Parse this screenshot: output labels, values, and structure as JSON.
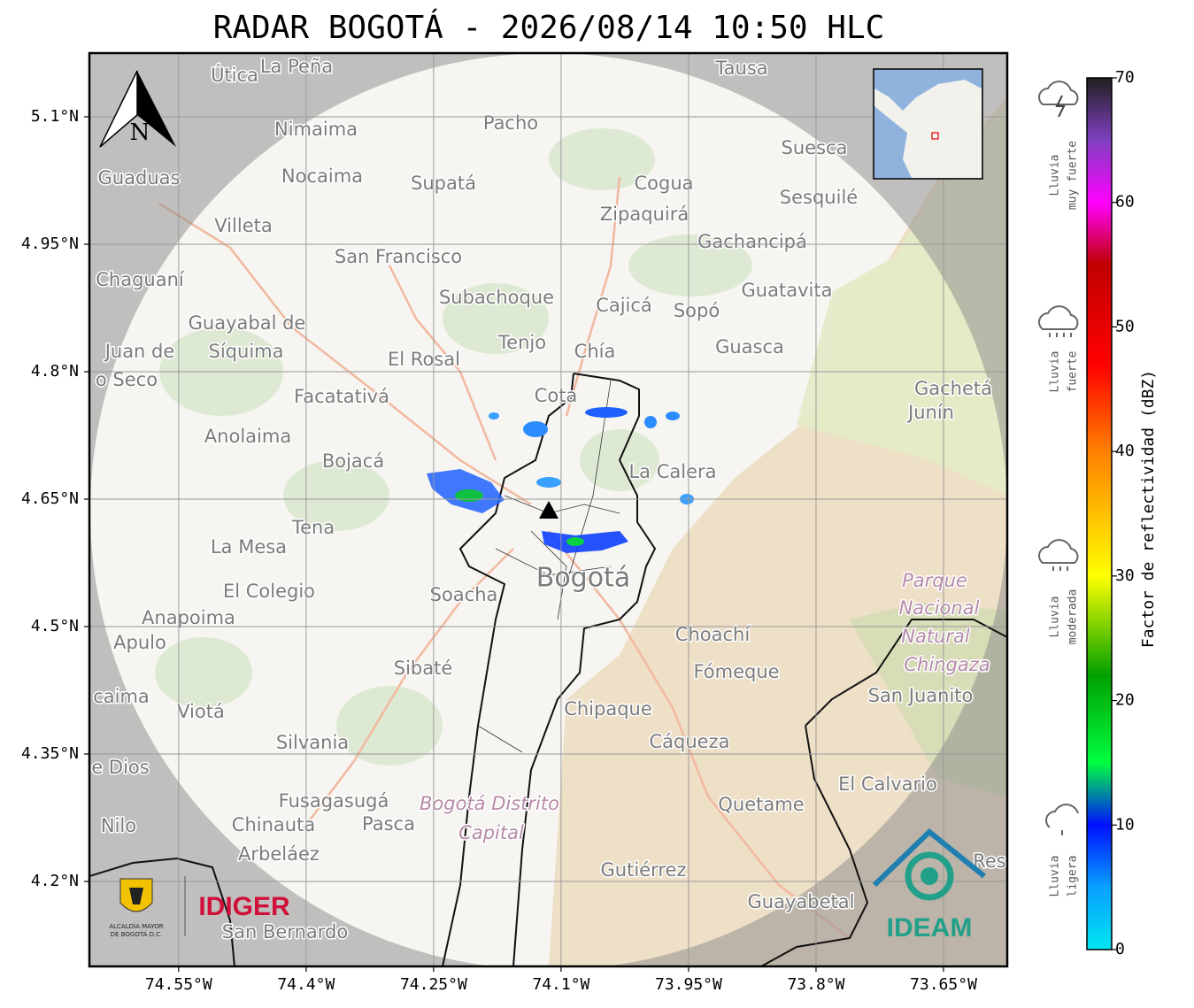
{
  "title": "RADAR BOGOTÁ - 2026/08/14 10:50 HLC",
  "map": {
    "xlim": [
      -74.655,
      -73.575
    ],
    "ylim": [
      4.1,
      5.175
    ],
    "xticks": [
      {
        "value": -74.55,
        "label": "74.55°W"
      },
      {
        "value": -74.4,
        "label": "74.4°W"
      },
      {
        "value": -74.25,
        "label": "74.25°W"
      },
      {
        "value": -74.1,
        "label": "74.1°W"
      },
      {
        "value": -73.95,
        "label": "73.95°W"
      },
      {
        "value": -73.8,
        "label": "73.8°W"
      },
      {
        "value": -73.65,
        "label": "73.65°W"
      }
    ],
    "yticks": [
      {
        "value": 5.1,
        "label": "5.1°N"
      },
      {
        "value": 4.95,
        "label": "4.95°N"
      },
      {
        "value": 4.8,
        "label": "4.8°N"
      },
      {
        "value": 4.65,
        "label": "4.65°N"
      },
      {
        "value": 4.5,
        "label": "4.5°N"
      },
      {
        "value": 4.35,
        "label": "4.35°N"
      },
      {
        "value": 4.2,
        "label": "4.2°N"
      }
    ],
    "grid": true,
    "north_label": "N",
    "places": [
      "Útica",
      "La Peña",
      "Tausa",
      "Pacho",
      "Nimaima",
      "Guaduas",
      "Nocaima",
      "Supatá",
      "Cogua",
      "Suesca",
      "Sesquilé",
      "Zipaquirá",
      "Villeta",
      "Gachancipá",
      "San Francisco",
      "Chaguaní",
      "Guatavita",
      "Subachoque",
      "Cajicá",
      "Sopó",
      "Guayabal de",
      "Síquima",
      "Juan de",
      "Tenjo",
      "Guasca",
      "El Rosal",
      "Chía",
      "o Seco",
      "Facatativá",
      "Cota",
      "Gachetá",
      "Junín",
      "Anolaima",
      "Bojacá",
      "La Calera",
      "Tena",
      "La Mesa",
      "El Colegio",
      "Soacha",
      "Bogotá",
      "Parque",
      "Nacional",
      "Natural",
      "Chingaza",
      "Anapoima",
      "Apulo",
      "Choachí",
      "Sibaté",
      "Fómeque",
      "San Juanito",
      "caima",
      "Viotá",
      "Chipaque",
      "Silvania",
      "Cáqueza",
      "e Dios",
      "El Calvario",
      "Fusagasugá",
      "Quetame",
      "Bogotá Distrito",
      "Capital",
      "Nilo",
      "Chinauta",
      "Pasca",
      "Arbeláez",
      "Gutiérrez",
      "Res",
      "Guayabetal",
      "San Bernardo"
    ]
  },
  "logos": {
    "alcaldia": [
      "ALCALDÍA MAYOR",
      "DE BOGOTÁ D.C."
    ],
    "idiger": "IDIGER",
    "ideam": "IDEAM"
  },
  "colorbar": {
    "label": "Factor de reflectividad (dBZ)",
    "lim": [
      0,
      70
    ],
    "ticks": [
      0,
      10,
      20,
      30,
      40,
      50,
      60,
      70
    ],
    "stops": [
      {
        "value": 0,
        "color": "#00e5f0"
      },
      {
        "value": 5,
        "color": "#0aa0ff"
      },
      {
        "value": 10,
        "color": "#0010ff"
      },
      {
        "value": 15,
        "color": "#00ff40"
      },
      {
        "value": 22,
        "color": "#00a000"
      },
      {
        "value": 30,
        "color": "#ffff00"
      },
      {
        "value": 40,
        "color": "#ff8000"
      },
      {
        "value": 47,
        "color": "#ff0000"
      },
      {
        "value": 55,
        "color": "#c00000"
      },
      {
        "value": 60,
        "color": "#ff00ff"
      },
      {
        "value": 65,
        "color": "#8040c0"
      },
      {
        "value": 70,
        "color": "#202020"
      }
    ],
    "categories": [
      [
        "Lluvia",
        "muy fuerte"
      ],
      [
        "Lluvia",
        "fuerte"
      ],
      [
        "Lluvia",
        "moderada"
      ],
      [
        "Lluvia",
        "ligera"
      ]
    ]
  }
}
